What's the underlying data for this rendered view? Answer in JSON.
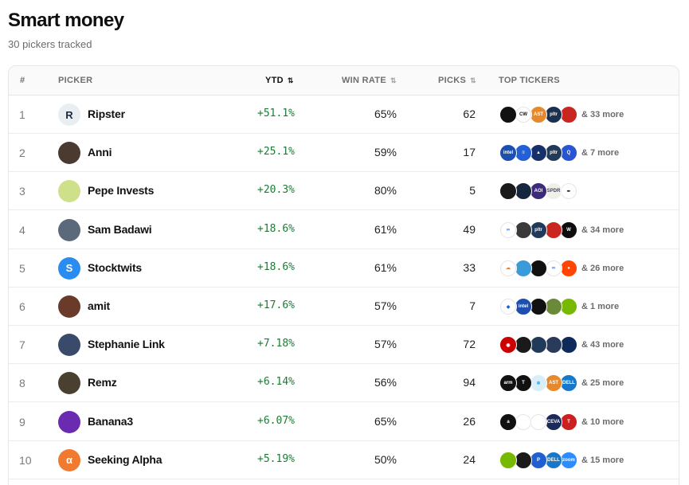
{
  "page": {
    "title": "Smart money",
    "subtitle": "30 pickers tracked"
  },
  "columns": {
    "rank": "#",
    "picker": "PICKER",
    "ytd": "YTD",
    "win_rate": "WIN RATE",
    "picks": "PICKS",
    "top_tickers": "TOP TICKERS",
    "sort_icon": "⇅"
  },
  "rows": [
    {
      "rank": "1",
      "name": "Ripster",
      "ytd": "+51.1%",
      "win_rate": "65%",
      "picks": "62",
      "more": "& 33 more",
      "avatar_icon": "ripster-logo-icon",
      "avatar_color": "#e9eef2",
      "avatar_glyph": "R",
      "avatar_fg": "#1b2a3a",
      "tickers": [
        {
          "icon": "ticker-logo-icon",
          "color": "#111111",
          "glyph": ""
        },
        {
          "icon": "coreweave-logo-icon",
          "color": "#ffffff",
          "glyph": "CW",
          "fg": "#111"
        },
        {
          "icon": "ast-logo-icon",
          "color": "#e6892c",
          "glyph": "AST"
        },
        {
          "icon": "palantir-logo-icon",
          "color": "#1a3050",
          "glyph": "pltr"
        },
        {
          "icon": "robinhood-logo-icon",
          "color": "#c8261f",
          "glyph": ""
        }
      ]
    },
    {
      "rank": "2",
      "name": "Anni",
      "ytd": "+25.1%",
      "win_rate": "59%",
      "picks": "17",
      "more": "& 7 more",
      "avatar_icon": "anni-avatar-icon",
      "avatar_color": "#4a3a30",
      "avatar_glyph": "",
      "avatar_fg": "#fff",
      "tickers": [
        {
          "icon": "intel-logo-icon",
          "color": "#1d4fb0",
          "glyph": "intel"
        },
        {
          "icon": "lines-logo-icon",
          "color": "#2360d6",
          "glyph": "≡"
        },
        {
          "icon": "mountain-logo-icon",
          "color": "#15306a",
          "glyph": "▲"
        },
        {
          "icon": "pltr-logo-icon",
          "color": "#223a5a",
          "glyph": "pltr"
        },
        {
          "icon": "q-logo-icon",
          "color": "#2a55d0",
          "glyph": "Q"
        }
      ]
    },
    {
      "rank": "3",
      "name": "Pepe Invests",
      "ytd": "+20.3%",
      "win_rate": "80%",
      "picks": "5",
      "more": "",
      "avatar_icon": "pepe-avatar-icon",
      "avatar_color": "#cfe08a",
      "avatar_glyph": "",
      "avatar_fg": "#2d5a20",
      "tickers": [
        {
          "icon": "ticker-logo-icon",
          "color": "#1a1a1a",
          "glyph": ""
        },
        {
          "icon": "blade-logo-icon",
          "color": "#17263f",
          "glyph": ""
        },
        {
          "icon": "aoi-logo-icon",
          "color": "#3d2a7a",
          "glyph": "AOI"
        },
        {
          "icon": "spdr-logo-icon",
          "color": "#f0f0e8",
          "glyph": "SPDR",
          "fg": "#446"
        },
        {
          "icon": "quill-logo-icon",
          "color": "#ffffff",
          "glyph": "✒",
          "fg": "#222"
        }
      ]
    },
    {
      "rank": "4",
      "name": "Sam Badawi",
      "ytd": "+18.6%",
      "win_rate": "61%",
      "picks": "49",
      "more": "& 34 more",
      "avatar_icon": "sam-avatar-icon",
      "avatar_color": "#5a6a7a",
      "avatar_glyph": "",
      "avatar_fg": "#fff",
      "tickers": [
        {
          "icon": "meta-logo-icon",
          "color": "#ffffff",
          "glyph": "∞",
          "fg": "#1b6cf2"
        },
        {
          "icon": "smartdev-logo-icon",
          "color": "#3a3a3a",
          "glyph": ""
        },
        {
          "icon": "pltr-logo-icon",
          "color": "#223a5a",
          "glyph": "pltr"
        },
        {
          "icon": "robinhood-logo-icon",
          "color": "#c8261f",
          "glyph": ""
        },
        {
          "icon": "w-logo-icon",
          "color": "#0e0e0e",
          "glyph": "W"
        }
      ]
    },
    {
      "rank": "5",
      "name": "Stocktwits",
      "ytd": "+18.6%",
      "win_rate": "61%",
      "picks": "33",
      "more": "& 26 more",
      "avatar_icon": "stocktwits-logo-icon",
      "avatar_color": "#2a8cf0",
      "avatar_glyph": "S",
      "avatar_fg": "#fff",
      "tickers": [
        {
          "icon": "cloudflare-logo-icon",
          "color": "#ffffff",
          "glyph": "☁",
          "fg": "#f38020"
        },
        {
          "icon": "box-logo-icon",
          "color": "#3b9bd8",
          "glyph": ""
        },
        {
          "icon": "apple-logo-icon",
          "color": "#111111",
          "glyph": ""
        },
        {
          "icon": "meta-logo-icon",
          "color": "#ffffff",
          "glyph": "∞",
          "fg": "#1b6cf2"
        },
        {
          "icon": "reddit-logo-icon",
          "color": "#ff4500",
          "glyph": "●"
        }
      ]
    },
    {
      "rank": "6",
      "name": "amit",
      "ytd": "+17.6%",
      "win_rate": "57%",
      "picks": "7",
      "more": "& 1 more",
      "avatar_icon": "amit-avatar-icon",
      "avatar_color": "#6a3a2a",
      "avatar_glyph": "",
      "avatar_fg": "#fff",
      "tickers": [
        {
          "icon": "diamond-logo-icon",
          "color": "#ffffff",
          "glyph": "◆",
          "fg": "#1a5fd0"
        },
        {
          "icon": "intel-logo-icon",
          "color": "#1d4fb0",
          "glyph": "intel"
        },
        {
          "icon": "amd-logo-icon",
          "color": "#111111",
          "glyph": ""
        },
        {
          "icon": "leaf-logo-icon",
          "color": "#6a8a3a",
          "glyph": ""
        },
        {
          "icon": "nvidia-logo-icon",
          "color": "#76b900",
          "glyph": ""
        }
      ]
    },
    {
      "rank": "7",
      "name": "Stephanie Link",
      "ytd": "+7.18%",
      "win_rate": "57%",
      "picks": "72",
      "more": "& 43 more",
      "avatar_icon": "stephanie-avatar-icon",
      "avatar_color": "#3a4a6a",
      "avatar_glyph": "",
      "avatar_fg": "#fff",
      "tickers": [
        {
          "icon": "target-logo-icon",
          "color": "#cc0000",
          "glyph": "◉"
        },
        {
          "icon": "mp-logo-icon",
          "color": "#1a1a1a",
          "glyph": ""
        },
        {
          "icon": "blue-logo-icon",
          "color": "#223a5a",
          "glyph": ""
        },
        {
          "icon": "chip-logo-icon",
          "color": "#2a3a5a",
          "glyph": ""
        },
        {
          "icon": "delta-logo-icon",
          "color": "#0d2a5a",
          "glyph": ""
        }
      ]
    },
    {
      "rank": "8",
      "name": "Remz",
      "ytd": "+6.14%",
      "win_rate": "56%",
      "picks": "94",
      "more": "& 25 more",
      "avatar_icon": "remz-avatar-icon",
      "avatar_color": "#4a4030",
      "avatar_glyph": "",
      "avatar_fg": "#fff",
      "tickers": [
        {
          "icon": "arm-logo-icon",
          "color": "#111111",
          "glyph": "arm"
        },
        {
          "icon": "tesla-black-logo-icon",
          "color": "#111111",
          "glyph": "T"
        },
        {
          "icon": "snowflake-logo-icon",
          "color": "#d9eef9",
          "glyph": "❄",
          "fg": "#29b5e8"
        },
        {
          "icon": "ast-logo-icon",
          "color": "#e6892c",
          "glyph": "AST"
        },
        {
          "icon": "dell-logo-icon",
          "color": "#1877c8",
          "glyph": "DELL"
        }
      ]
    },
    {
      "rank": "9",
      "name": "Banana3",
      "ytd": "+6.07%",
      "win_rate": "65%",
      "picks": "26",
      "more": "& 10 more",
      "avatar_icon": "banana-avatar-icon",
      "avatar_color": "#6b2bb0",
      "avatar_glyph": "",
      "avatar_fg": "#fff",
      "tickers": [
        {
          "icon": "amazon-logo-icon",
          "color": "#111111",
          "glyph": "a"
        },
        {
          "icon": "swoosh-logo-icon",
          "color": "#ffffff",
          "glyph": "",
          "fg": "#1a3a7a"
        },
        {
          "icon": "marvell-logo-icon",
          "color": "#ffffff",
          "glyph": "",
          "fg": "#555"
        },
        {
          "icon": "ceva-logo-icon",
          "color": "#1a2a5a",
          "glyph": "CEVA"
        },
        {
          "icon": "tesla-logo-icon",
          "color": "#cc1f1f",
          "glyph": "T"
        }
      ]
    },
    {
      "rank": "10",
      "name": "Seeking Alpha",
      "ytd": "+5.19%",
      "win_rate": "50%",
      "picks": "24",
      "more": "& 15 more",
      "avatar_icon": "seeking-alpha-logo-icon",
      "avatar_color": "#f07a30",
      "avatar_glyph": "α",
      "avatar_fg": "#fff",
      "tickers": [
        {
          "icon": "nvidia-logo-icon",
          "color": "#76b900",
          "glyph": ""
        },
        {
          "icon": "ticker-logo-icon",
          "color": "#1a1a1a",
          "glyph": ""
        },
        {
          "icon": "p-logo-icon",
          "color": "#1f5fd0",
          "glyph": "P"
        },
        {
          "icon": "dell-logo-icon",
          "color": "#1877c8",
          "glyph": "DELL"
        },
        {
          "icon": "zoom-logo-icon",
          "color": "#2d8cff",
          "glyph": "zoom"
        }
      ]
    }
  ]
}
